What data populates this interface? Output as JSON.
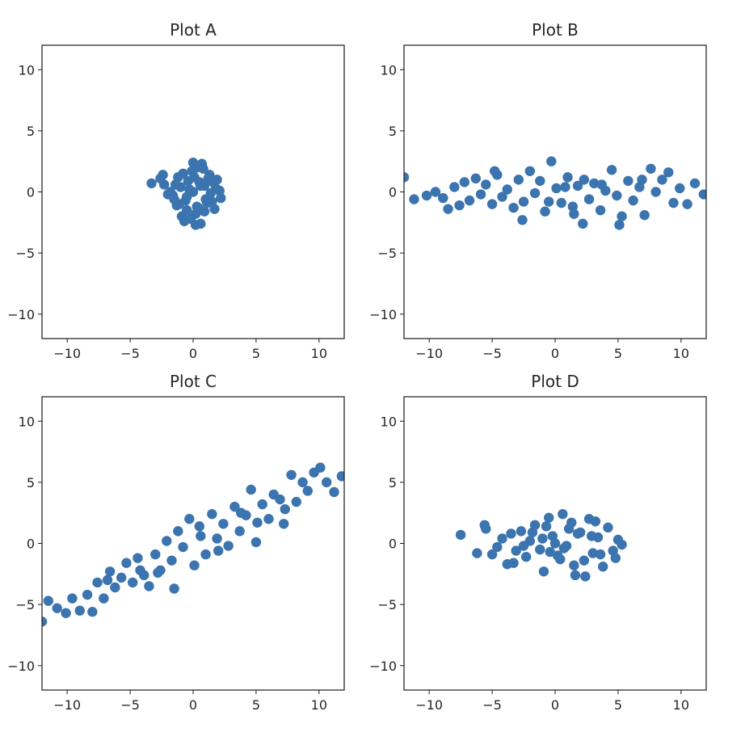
{
  "colors": {
    "marker": "#3b74ae",
    "frame": "#1a1a1a",
    "text": "#262626"
  },
  "chart_data": [
    {
      "type": "scatter",
      "title": "Plot A",
      "xlim": [
        -12,
        12
      ],
      "ylim": [
        -12,
        12
      ],
      "xticks": [
        "−10",
        "−5",
        "0",
        "5",
        "10"
      ],
      "yticks": [
        "10",
        "5",
        "0",
        "−5",
        "−10"
      ],
      "x": [
        0.0,
        0.6,
        -0.5,
        1.2,
        -1.1,
        0.3,
        -0.2,
        1.8,
        -1.6,
        0.9,
        -0.8,
        0.1,
        1.5,
        -1.4,
        0.4,
        -0.4,
        2.1,
        -2.0,
        0.7,
        -0.7,
        1.0,
        -1.0,
        0.2,
        -0.1,
        1.3,
        -1.3,
        0.5,
        -0.6,
        1.7,
        -1.8,
        0.8,
        -0.9,
        1.9,
        -2.3,
        0.0,
        0.6,
        -0.3,
        1.1,
        -1.2,
        2.2,
        -3.3,
        -2.4,
        -2.6,
        1.6,
        0.3,
        -0.5,
        0.9,
        1.4,
        -1.5,
        0.2
      ],
      "y": [
        0.0,
        0.5,
        -0.4,
        1.1,
        -1.0,
        2.0,
        -2.2,
        0.3,
        -0.3,
        -1.6,
        1.5,
        1.2,
        -0.8,
        0.6,
        -1.3,
        0.9,
        0.1,
        -0.2,
        2.3,
        -2.4,
        -0.6,
        0.4,
        -1.8,
        1.7,
        1.4,
        -1.1,
        0.8,
        -0.7,
        -1.4,
        0.0,
        1.9,
        -2.0,
        1.0,
        0.6,
        2.4,
        -2.6,
        0.2,
        -0.9,
        1.2,
        -0.5,
        0.7,
        1.4,
        1.1,
        0.8,
        -1.2,
        -1.5,
        0.5,
        -0.1,
        -0.6,
        -2.7
      ]
    },
    {
      "type": "scatter",
      "title": "Plot B",
      "xlim": [
        -12,
        12
      ],
      "ylim": [
        -12,
        12
      ],
      "xticks": [
        "−10",
        "−5",
        "0",
        "5",
        "10"
      ],
      "yticks": [
        "10",
        "5",
        "0",
        "−5",
        "−10"
      ],
      "x": [
        -12.0,
        -11.2,
        -10.2,
        -9.5,
        -8.9,
        -8.5,
        -8.0,
        -7.6,
        -7.2,
        -6.8,
        -6.3,
        -5.9,
        -5.5,
        -5.0,
        -4.6,
        -4.2,
        -3.8,
        -3.3,
        -2.9,
        -2.5,
        -2.0,
        -1.6,
        -1.2,
        -0.8,
        -0.3,
        0.1,
        0.5,
        1.0,
        1.4,
        1.8,
        2.3,
        2.7,
        3.1,
        3.6,
        4.0,
        4.5,
        4.9,
        5.3,
        5.8,
        6.2,
        6.7,
        7.1,
        7.6,
        8.0,
        8.5,
        9.0,
        9.4,
        9.9,
        10.5,
        11.1,
        11.8,
        -0.5,
        2.2,
        5.1,
        -2.6,
        3.7,
        0.8,
        -4.8,
        6.9,
        1.5
      ],
      "y": [
        1.2,
        -0.6,
        -0.3,
        0.0,
        -0.5,
        -1.4,
        0.4,
        -1.1,
        0.8,
        -0.7,
        1.1,
        -0.2,
        0.6,
        -1.0,
        1.4,
        -0.4,
        0.2,
        -1.3,
        1.0,
        -0.8,
        1.7,
        -0.1,
        0.9,
        -1.6,
        2.5,
        0.3,
        -0.9,
        1.2,
        -1.2,
        0.5,
        1.0,
        -0.6,
        0.7,
        -1.5,
        0.1,
        1.8,
        -0.3,
        -2.0,
        0.9,
        -0.7,
        0.4,
        -1.9,
        1.9,
        0.0,
        1.0,
        1.6,
        -0.9,
        0.3,
        -1.0,
        0.7,
        -0.2,
        -0.8,
        -2.6,
        -2.7,
        -2.3,
        0.6,
        0.4,
        1.7,
        1.0,
        -1.8
      ]
    },
    {
      "type": "scatter",
      "title": "Plot C",
      "xlim": [
        -12,
        12
      ],
      "ylim": [
        -12,
        12
      ],
      "xticks": [
        "−10",
        "−5",
        "0",
        "5",
        "10"
      ],
      "yticks": [
        "10",
        "5",
        "0",
        "−5",
        "−10"
      ],
      "x": [
        -12.0,
        -11.5,
        -10.8,
        -10.1,
        -9.6,
        -9.0,
        -8.4,
        -8.0,
        -7.6,
        -7.1,
        -6.6,
        -6.2,
        -5.7,
        -5.3,
        -4.8,
        -4.4,
        -3.9,
        -3.5,
        -3.0,
        -2.6,
        -2.1,
        -1.7,
        -1.2,
        -0.8,
        -0.3,
        0.1,
        0.6,
        1.0,
        1.5,
        1.9,
        2.4,
        2.8,
        3.3,
        3.7,
        4.2,
        4.6,
        5.1,
        5.5,
        6.0,
        6.4,
        6.9,
        7.3,
        7.8,
        8.2,
        8.7,
        9.1,
        9.6,
        10.1,
        10.6,
        11.2,
        11.8,
        -4.2,
        -1.5,
        2.0,
        5.0,
        -6.8,
        0.5,
        3.8,
        -2.8,
        7.2
      ],
      "y": [
        -6.4,
        -4.7,
        -5.3,
        -5.7,
        -4.5,
        -5.5,
        -4.2,
        -5.6,
        -3.2,
        -4.5,
        -2.3,
        -3.6,
        -2.8,
        -1.6,
        -3.2,
        -1.2,
        -2.6,
        -3.5,
        -0.9,
        -2.2,
        0.2,
        -1.4,
        1.0,
        -0.3,
        2.0,
        -1.8,
        0.6,
        -0.9,
        2.4,
        0.4,
        1.6,
        -0.2,
        3.0,
        1.0,
        2.3,
        4.4,
        1.7,
        3.2,
        2.0,
        4.0,
        3.6,
        2.8,
        5.6,
        3.4,
        5.0,
        4.3,
        5.8,
        6.2,
        5.0,
        4.2,
        5.5,
        -2.2,
        -3.7,
        -0.6,
        0.1,
        -3.0,
        1.4,
        2.5,
        -2.4,
        1.6
      ]
    },
    {
      "type": "scatter",
      "title": "Plot D",
      "xlim": [
        -12,
        12
      ],
      "ylim": [
        -12,
        12
      ],
      "xticks": [
        "−10",
        "−5",
        "0",
        "5",
        "10"
      ],
      "yticks": [
        "10",
        "5",
        "0",
        "−5",
        "−10"
      ],
      "x": [
        -7.5,
        -6.2,
        -5.6,
        -5.5,
        -5.0,
        -4.6,
        -4.2,
        -3.8,
        -3.5,
        -3.1,
        -2.7,
        -2.3,
        -2.0,
        -1.6,
        -1.2,
        -0.9,
        -0.5,
        -0.2,
        0.2,
        0.6,
        0.9,
        1.3,
        1.6,
        2.0,
        2.3,
        2.7,
        3.0,
        3.4,
        3.8,
        4.2,
        4.6,
        5.0,
        5.3,
        -1.0,
        0.4,
        1.8,
        -2.5,
        3.2,
        0.0,
        -0.4,
        1.1,
        -1.8,
        2.4,
        4.8,
        -3.3,
        0.7,
        2.9,
        -0.7,
        1.5,
        3.6
      ],
      "y": [
        0.7,
        -0.8,
        1.5,
        1.2,
        -0.9,
        -0.3,
        0.4,
        -1.7,
        0.8,
        -0.6,
        1.0,
        -1.1,
        0.2,
        1.5,
        -0.5,
        -2.3,
        2.1,
        0.6,
        -1.0,
        2.4,
        -0.2,
        1.7,
        -2.6,
        0.9,
        -1.4,
        2.0,
        -0.8,
        0.5,
        -1.9,
        1.3,
        -0.6,
        0.3,
        -0.1,
        0.4,
        -1.3,
        0.8,
        -0.2,
        1.8,
        0.0,
        -0.7,
        1.2,
        0.9,
        -2.7,
        -1.2,
        -1.6,
        -0.4,
        0.6,
        1.4,
        -1.8,
        -0.9
      ]
    }
  ]
}
